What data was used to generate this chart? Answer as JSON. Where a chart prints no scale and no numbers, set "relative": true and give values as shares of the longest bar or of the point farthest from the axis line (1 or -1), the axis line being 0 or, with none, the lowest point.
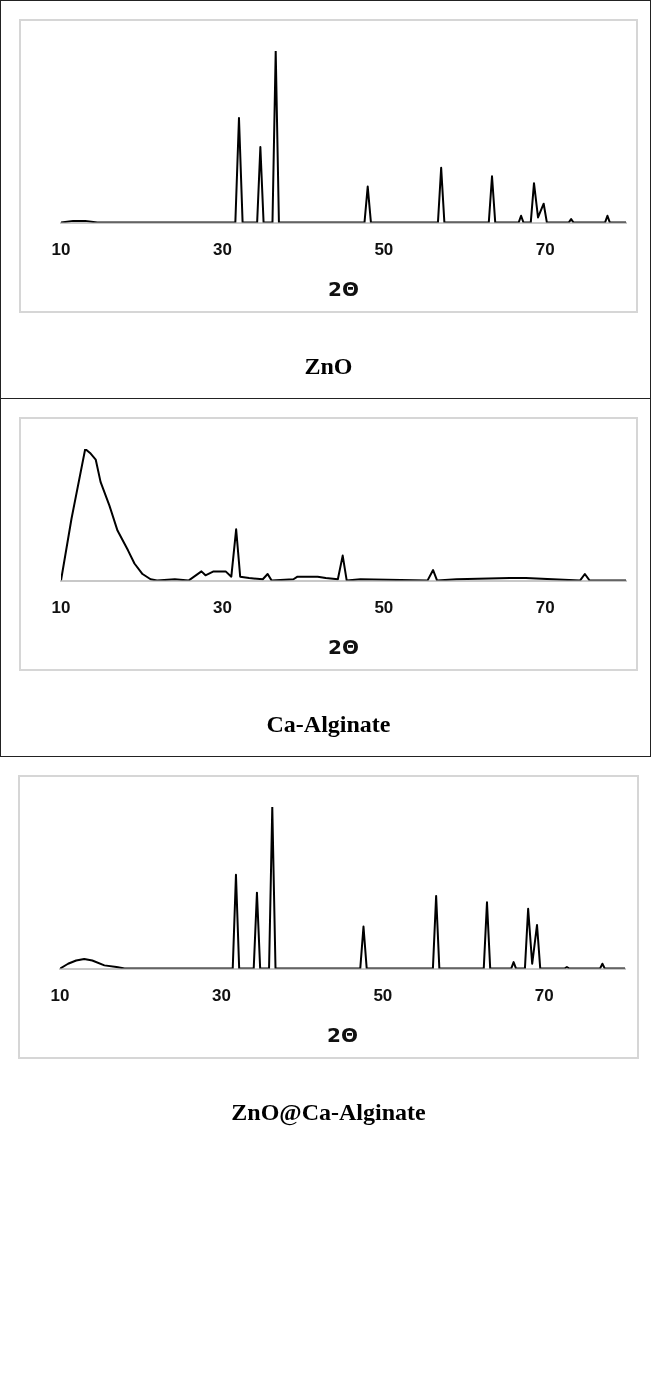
{
  "chart_data": [
    {
      "type": "line",
      "title": "ZnO",
      "xlabel": "2Θ",
      "relative": true,
      "xlim": [
        10,
        80
      ],
      "xticks": [
        10,
        30,
        50,
        70
      ],
      "grid": false,
      "legend": false,
      "marker": "none",
      "line_style": "solid",
      "tick_labels": "x",
      "series": [
        {
          "color": "#000000",
          "x": [
            10,
            11.5,
            13,
            14.5,
            31.6,
            32.05,
            32.5,
            34.3,
            34.7,
            35.1,
            36.2,
            36.6,
            37.0,
            47.6,
            48.0,
            48.4,
            56.7,
            57.1,
            57.5,
            63.0,
            63.4,
            63.8,
            66.7,
            67.0,
            67.3,
            68.2,
            68.6,
            69.1,
            69.8,
            70.2,
            72.9,
            73.2,
            73.5,
            77.4,
            77.7,
            78.0,
            80
          ],
          "values": [
            0,
            0.01,
            0.01,
            0,
            0,
            0.61,
            0,
            0,
            0.44,
            0,
            0,
            1,
            0,
            0,
            0.21,
            0,
            0,
            0.32,
            0,
            0,
            0.27,
            0,
            0,
            0.04,
            0,
            0,
            0.23,
            0.03,
            0.11,
            0,
            0,
            0.02,
            0,
            0,
            0.04,
            0,
            0
          ]
        }
      ]
    },
    {
      "type": "line",
      "title": "Ca-Alginate",
      "xlabel": "2Θ",
      "relative": true,
      "xlim": [
        10,
        80
      ],
      "xticks": [
        10,
        30,
        50,
        70
      ],
      "grid": false,
      "legend": false,
      "marker": "none",
      "line_style": "solid",
      "tick_labels": "x",
      "series": [
        {
          "color": "#000000",
          "x": [
            10,
            11.3,
            13.0,
            13.6,
            14.3,
            14.9,
            16.0,
            17.0,
            18.3,
            19.1,
            20.1,
            21.1,
            21.9,
            24.1,
            25.8,
            27.4,
            27.9,
            28.9,
            30.4,
            31.1,
            31.7,
            32.2,
            33.3,
            35.0,
            35.6,
            36.1,
            38.8,
            39.3,
            41.8,
            42.8,
            44.3,
            44.9,
            45.4,
            47.1,
            55.4,
            56.1,
            56.6,
            59.0,
            65.8,
            67.6,
            74.3,
            74.9,
            75.5,
            80
          ],
          "values": [
            0,
            0.47,
            1,
            0.97,
            0.92,
            0.75,
            0.57,
            0.38,
            0.23,
            0.13,
            0.05,
            0.01,
            0,
            0.01,
            0,
            0.07,
            0.04,
            0.07,
            0.07,
            0.03,
            0.39,
            0.03,
            0.02,
            0.01,
            0.05,
            0,
            0.01,
            0.03,
            0.03,
            0.02,
            0.01,
            0.19,
            0,
            0.01,
            0,
            0.08,
            0,
            0.01,
            0.02,
            0.02,
            0,
            0.05,
            0,
            0
          ]
        }
      ]
    },
    {
      "type": "line",
      "title": "ZnO@Ca-Alginate",
      "xlabel": "2Θ",
      "relative": true,
      "xlim": [
        10,
        80
      ],
      "xticks": [
        10,
        30,
        50,
        70
      ],
      "grid": false,
      "legend": false,
      "marker": "none",
      "line_style": "solid",
      "tick_labels": "x",
      "series": [
        {
          "color": "#000000",
          "x": [
            10,
            11,
            12,
            13,
            14,
            15.5,
            17,
            18,
            31.4,
            31.8,
            32.2,
            34.0,
            34.4,
            34.8,
            35.9,
            36.3,
            36.7,
            47.2,
            47.6,
            48.0,
            56.2,
            56.6,
            57.0,
            62.5,
            62.9,
            63.3,
            65.9,
            66.2,
            66.5,
            67.6,
            68.0,
            68.5,
            69.1,
            69.5,
            72.5,
            72.8,
            73.1,
            76.9,
            77.2,
            77.5,
            80
          ],
          "values": [
            0,
            0.03,
            0.05,
            0.06,
            0.05,
            0.02,
            0.01,
            0,
            0,
            0.58,
            0,
            0,
            0.47,
            0,
            0,
            1,
            0,
            0,
            0.26,
            0,
            0,
            0.45,
            0,
            0,
            0.41,
            0,
            0,
            0.04,
            0,
            0,
            0.37,
            0.03,
            0.27,
            0,
            0,
            0.01,
            0,
            0,
            0.03,
            0,
            0
          ]
        }
      ]
    }
  ]
}
